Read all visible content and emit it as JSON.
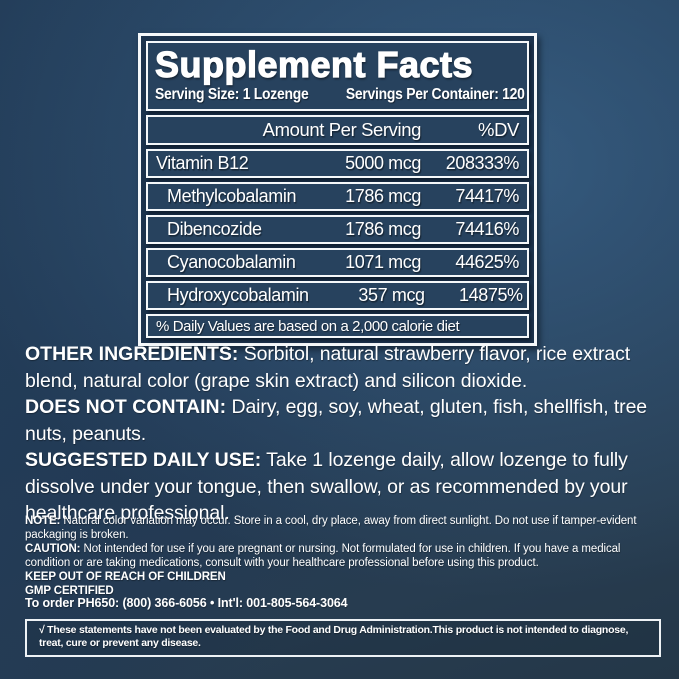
{
  "colors": {
    "background_top": "#24405c",
    "background_highlight": "#3a6a94",
    "background_bottom": "#243748",
    "panel_background": "#1c334d",
    "box_background": "#27425e",
    "border_white": "#f5f8fa",
    "text": "#ffffff"
  },
  "supplement_facts": {
    "title": "Supplement Facts",
    "serving_size": "Serving Size: 1 Lozenge",
    "servings_per_container": "Servings Per Container: 120",
    "columns": {
      "amount": "Amount Per Serving",
      "dv": "%DV"
    },
    "rows": [
      {
        "name": "Vitamin B12",
        "amount": "5000 mcg",
        "dv": "208333%"
      },
      {
        "name": "Methylcobalamin",
        "amount": "1786 mcg",
        "dv": "74417%"
      },
      {
        "name": "Dibencozide",
        "amount": "1786 mcg",
        "dv": "74416%"
      },
      {
        "name": "Cyanocobalamin",
        "amount": "1071 mcg",
        "dv": "44625%"
      },
      {
        "name": "Hydroxycobalamin",
        "amount": "357 mcg",
        "dv": "14875%"
      }
    ],
    "footnote": "% Daily Values are based on a 2,000 calorie diet"
  },
  "info": {
    "other_ingredients_label": "OTHER INGREDIENTS:",
    "other_ingredients_text": " Sorbitol, natural strawberry flavor, rice extract blend, natural color (grape skin extract) and silicon dioxide.",
    "does_not_contain_label": "DOES NOT CONTAIN:",
    "does_not_contain_text": " Dairy, egg, soy, wheat, gluten, fish, shellfish, tree nuts, peanuts.",
    "suggested_use_label": "SUGGESTED DAILY USE:",
    "suggested_use_text": " Take 1 lozenge daily, allow lozenge to fully dissolve under your tongue, then swallow, or as recommended by your healthcare professional."
  },
  "fine_print": {
    "note_label": "NOTE:",
    "note_text": " Natural color variation may occur. Store in a cool, dry place, away from direct sunlight. Do not use if tamper-evident packaging is broken.",
    "caution_label": "CAUTION:",
    "caution_text": " Not intended for use if you are pregnant or nursing. Not formulated for use in children. If you have a medical condition or are taking medications, consult with your healthcare professional before using this product.",
    "keep_out_of_reach": "KEEP OUT OF REACH OF CHILDREN",
    "gmp_certified": "GMP CERTIFIED"
  },
  "order_line": "To order PH650: (800) 366-6056 • Int'l: 001-805-564-3064",
  "disclaimer": "√ These statements have not been evaluated by the Food and Drug Administration.This product is not intended to diagnose, treat, cure or prevent any disease."
}
